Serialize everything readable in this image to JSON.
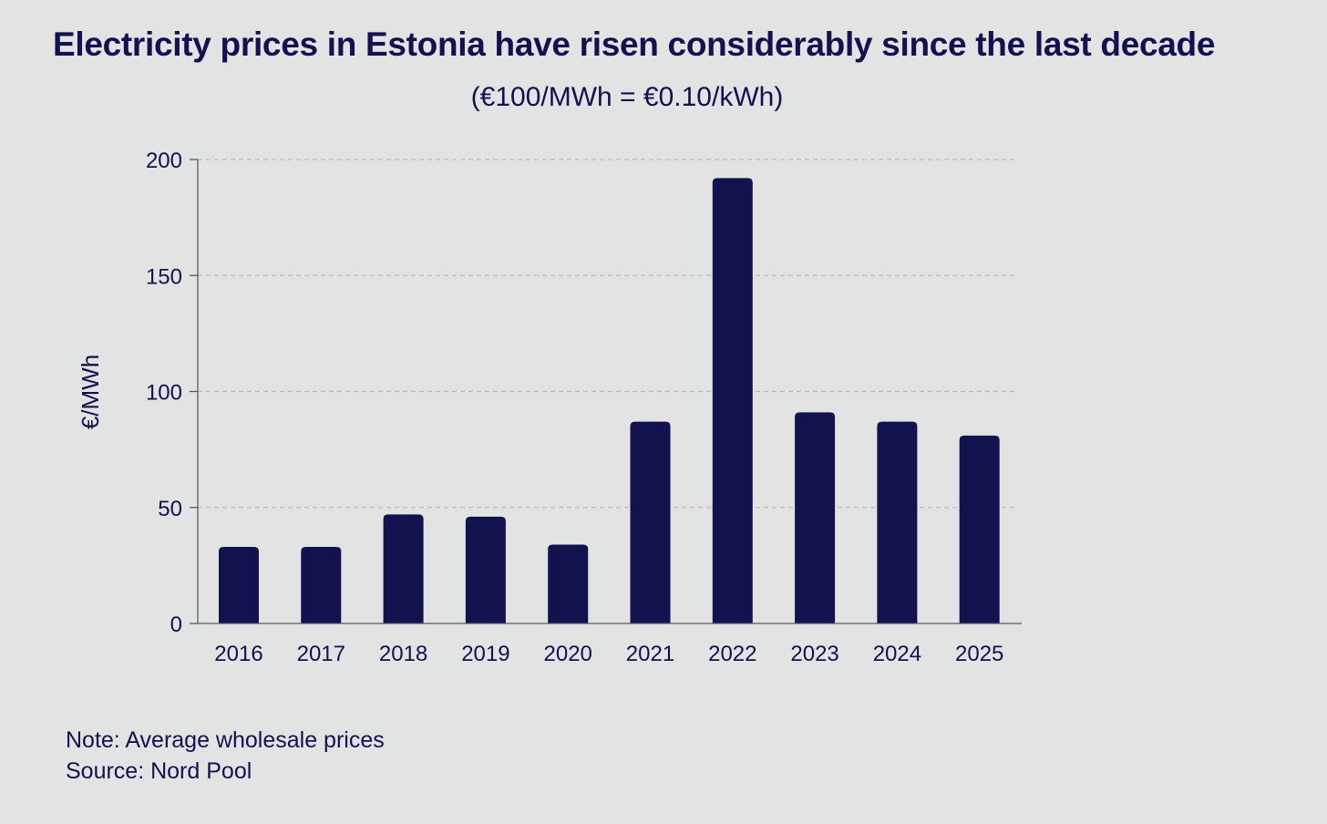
{
  "colors": {
    "background": "#e2e3e3",
    "bar": "#12124f",
    "text": "#12124f",
    "grid": "#b9baba",
    "axis": "#555a66"
  },
  "chart_data": {
    "type": "bar",
    "title": "Electricity prices in Estonia have risen considerably since the last decade",
    "subtitle": "(€100/MWh = €0.10/kWh)",
    "xlabel": "",
    "ylabel": "€/MWh",
    "categories": [
      "2016",
      "2017",
      "2018",
      "2019",
      "2020",
      "2021",
      "2022",
      "2023",
      "2024",
      "2025"
    ],
    "values": [
      33,
      33,
      47,
      46,
      34,
      87,
      192,
      91,
      87,
      81
    ],
    "ylim": [
      0,
      200
    ],
    "yticks": [
      0,
      50,
      100,
      150,
      200
    ],
    "grid": true,
    "legend": "none"
  },
  "notes": {
    "note": "Note: Average wholesale prices",
    "source": "Source: Nord Pool"
  }
}
